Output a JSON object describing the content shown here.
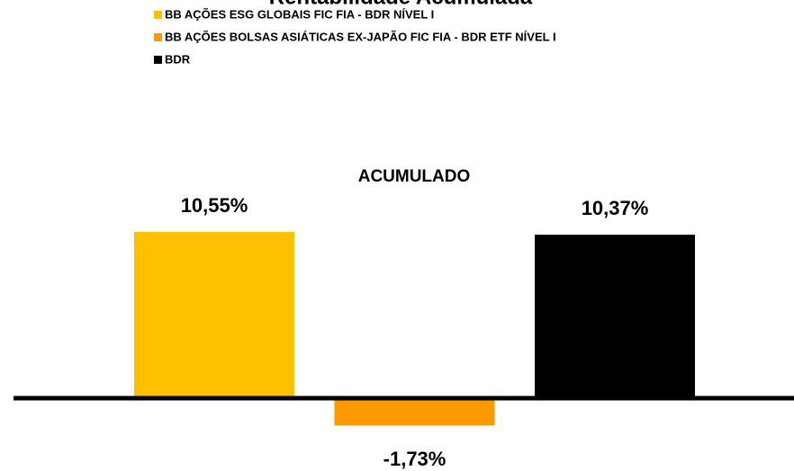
{
  "chart_data": {
    "type": "bar",
    "title": "Rentabilidade Acumulada",
    "categories": [
      "ACUMULADO"
    ],
    "series": [
      {
        "name": "BB AÇÕES ESG GLOBAIS FIC FIA - BDR NÍVEL I",
        "color": "#ffc000",
        "values": [
          10.55
        ],
        "value_labels": [
          "10,55%"
        ]
      },
      {
        "name": "BB AÇÕES BOLSAS ASIÁTICAS EX-JAPÃO FIC FIA - BDR ETF NÍVEL I",
        "color": "#ff9900",
        "values": [
          -1.73
        ],
        "value_labels": [
          "-1,73%"
        ]
      },
      {
        "name": "BDR",
        "color": "#000000",
        "values": [
          10.37
        ],
        "value_labels": [
          "10,37%"
        ]
      }
    ],
    "legend": "top-left"
  }
}
